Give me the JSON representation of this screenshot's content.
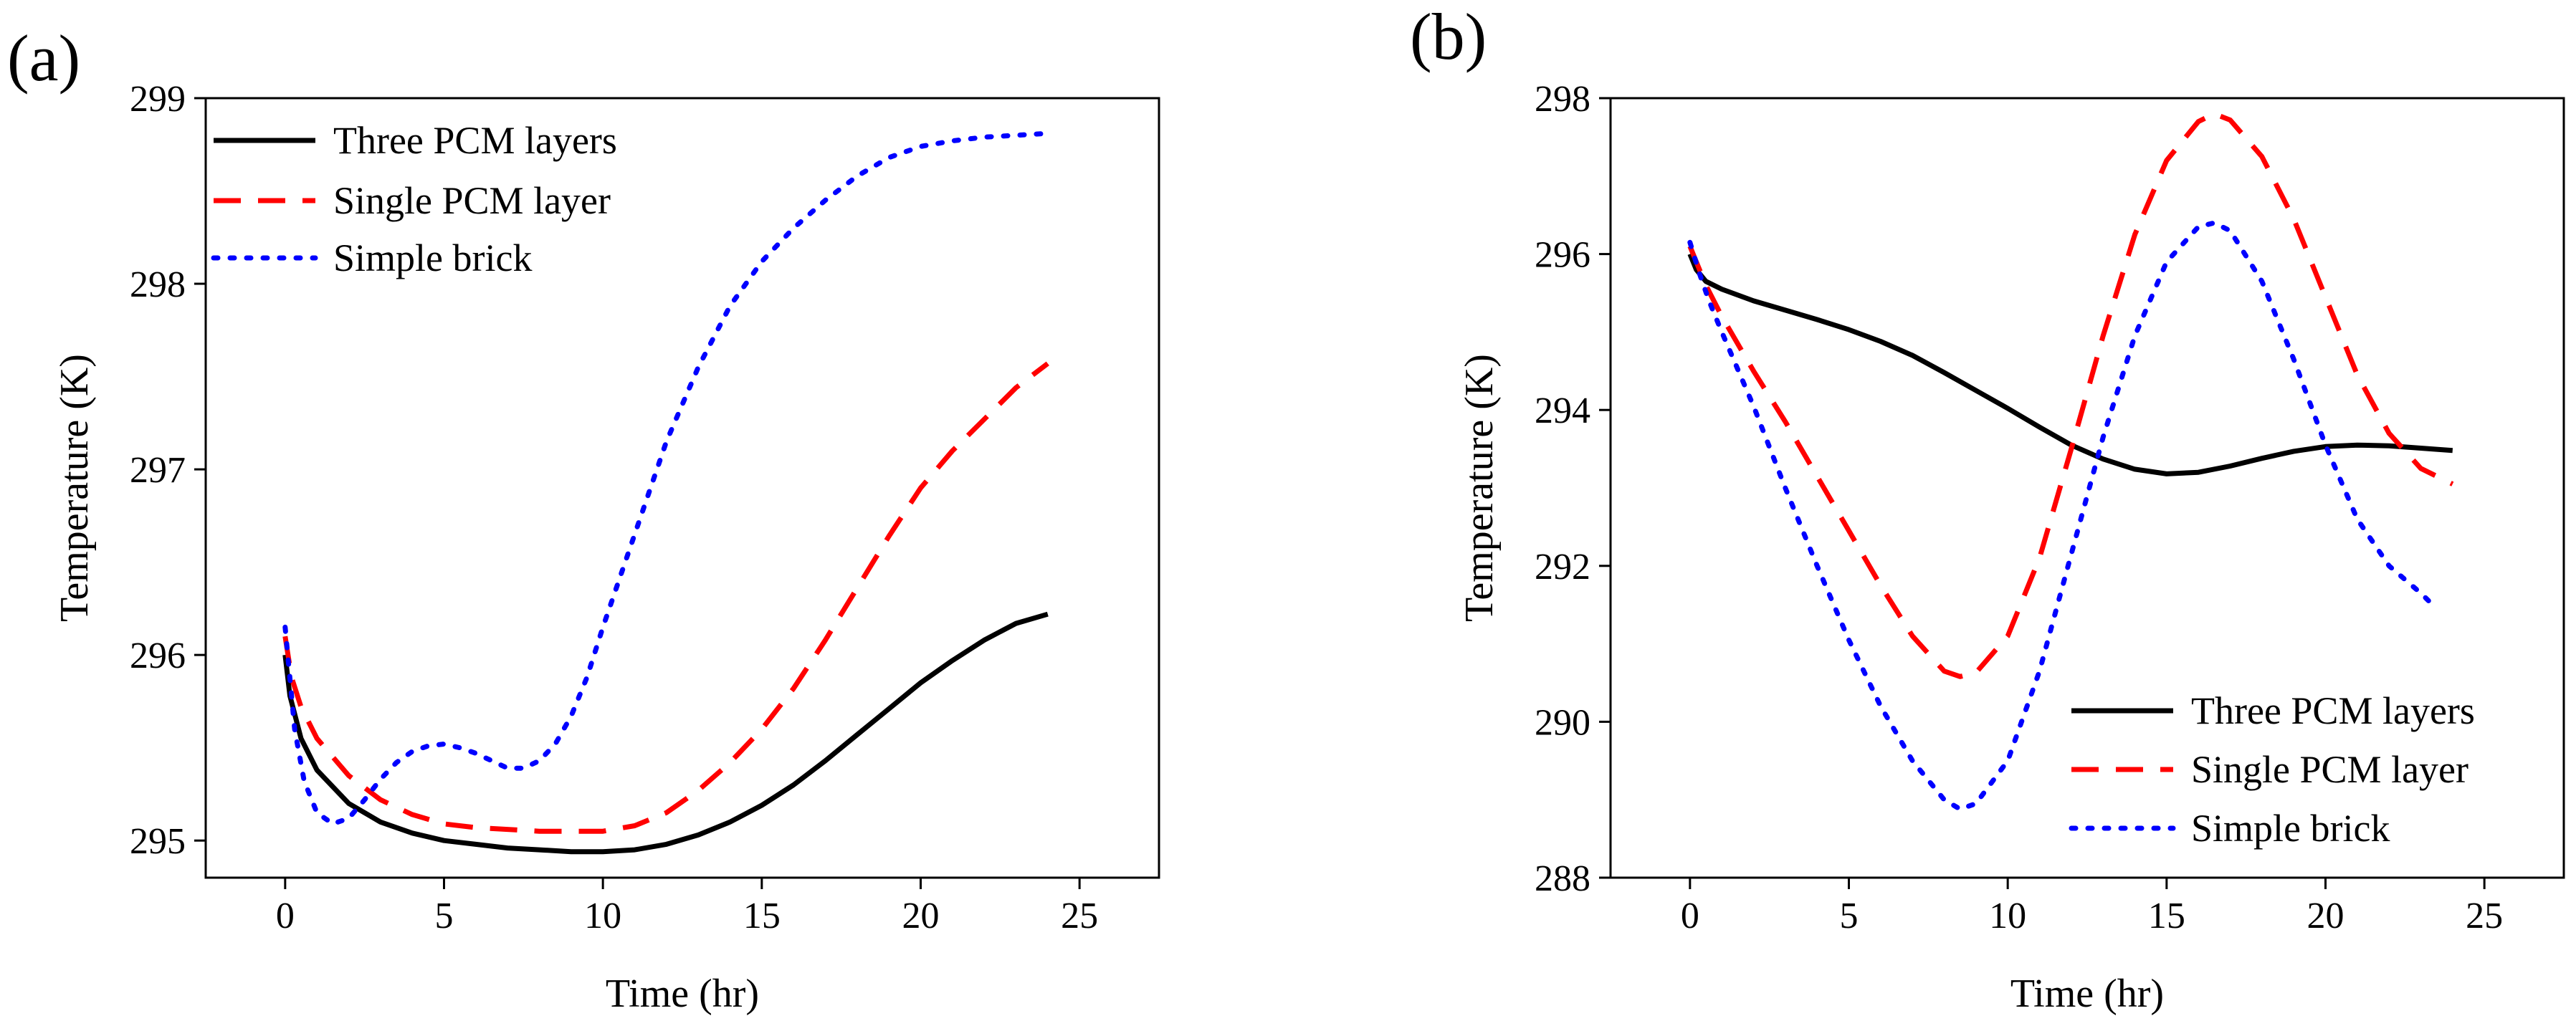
{
  "chart_data": [
    {
      "panel_label": "(a)",
      "type": "line",
      "title": "",
      "xlabel": "Time (hr)",
      "ylabel": "Temperature (K)",
      "xlim": [
        -2.5,
        27.5
      ],
      "ylim": [
        294.8,
        299.0
      ],
      "xticks": [
        0,
        5,
        10,
        15,
        20,
        25
      ],
      "xtick_labels": [
        "0",
        "5",
        "10",
        "15",
        "20",
        "25"
      ],
      "yticks": [
        295,
        296,
        297,
        298,
        299
      ],
      "ytick_labels": [
        "295",
        "296",
        "297",
        "298",
        "299"
      ],
      "grid": false,
      "legend_position": "top-left",
      "series": [
        {
          "name": "Three PCM layers",
          "color": "#000000",
          "style": "solid",
          "x": [
            0,
            0.15,
            0.5,
            1,
            2,
            3,
            4,
            5,
            6,
            7,
            8,
            9,
            10,
            11,
            12,
            13,
            14,
            15,
            16,
            17,
            18,
            19,
            20,
            21,
            22,
            23,
            24
          ],
          "y": [
            296.0,
            295.78,
            295.55,
            295.38,
            295.2,
            295.1,
            295.04,
            295.0,
            294.98,
            294.96,
            294.95,
            294.94,
            294.94,
            294.95,
            294.98,
            295.03,
            295.1,
            295.19,
            295.3,
            295.43,
            295.57,
            295.71,
            295.85,
            295.97,
            296.08,
            296.17,
            296.22
          ]
        },
        {
          "name": "Single PCM layer",
          "color": "#ff0000",
          "style": "dashed",
          "x": [
            0,
            0.2,
            0.5,
            1,
            2,
            3,
            4,
            5,
            6,
            7,
            8,
            9,
            10,
            11,
            12,
            13,
            14,
            15,
            16,
            17,
            18,
            19,
            20,
            21,
            22,
            23,
            24
          ],
          "y": [
            296.1,
            295.88,
            295.72,
            295.55,
            295.35,
            295.22,
            295.14,
            295.09,
            295.07,
            295.06,
            295.05,
            295.05,
            295.05,
            295.08,
            295.15,
            295.27,
            295.42,
            295.6,
            295.82,
            296.08,
            296.36,
            296.64,
            296.9,
            297.1,
            297.27,
            297.44,
            297.57
          ]
        },
        {
          "name": "Simple brick",
          "color": "#0000ff",
          "style": "dotted",
          "x": [
            0,
            0.3,
            0.6,
            1,
            1.5,
            2,
            2.5,
            3,
            3.5,
            4,
            4.5,
            5,
            5.5,
            6,
            6.5,
            7,
            7.5,
            8,
            8.5,
            9,
            9.5,
            10,
            11,
            12,
            13,
            14,
            15,
            16,
            17,
            18,
            19,
            20,
            21,
            22,
            23,
            24
          ],
          "y": [
            296.15,
            295.6,
            295.32,
            295.15,
            295.09,
            295.12,
            295.22,
            295.33,
            295.42,
            295.48,
            295.51,
            295.52,
            295.5,
            295.47,
            295.43,
            295.39,
            295.39,
            295.43,
            295.52,
            295.67,
            295.88,
            296.15,
            296.65,
            297.15,
            297.55,
            297.88,
            298.12,
            298.3,
            298.45,
            298.58,
            298.68,
            298.74,
            298.77,
            298.79,
            298.8,
            298.81
          ]
        }
      ]
    },
    {
      "panel_label": "(b)",
      "type": "line",
      "title": "",
      "xlabel": "Time (hr)",
      "ylabel": "Temperature (K)",
      "xlim": [
        -2.5,
        27.5
      ],
      "ylim": [
        288.0,
        298.0
      ],
      "xticks": [
        0,
        5,
        10,
        15,
        20,
        25
      ],
      "xtick_labels": [
        "0",
        "5",
        "10",
        "15",
        "20",
        "25"
      ],
      "yticks": [
        288,
        290,
        292,
        294,
        296,
        298
      ],
      "ytick_labels": [
        "288",
        "290",
        "292",
        "294",
        "296",
        "298"
      ],
      "grid": false,
      "legend_position": "bottom-right",
      "series": [
        {
          "name": "Three PCM layers",
          "color": "#000000",
          "style": "solid",
          "x": [
            0,
            0.2,
            0.5,
            1,
            2,
            3,
            4,
            5,
            6,
            7,
            8,
            9,
            10,
            11,
            12,
            13,
            14,
            15,
            16,
            17,
            18,
            19,
            20,
            21,
            22,
            23,
            24
          ],
          "y": [
            296.0,
            295.8,
            295.65,
            295.55,
            295.4,
            295.28,
            295.16,
            295.03,
            294.88,
            294.7,
            294.48,
            294.25,
            294.02,
            293.78,
            293.55,
            293.37,
            293.24,
            293.18,
            293.2,
            293.28,
            293.38,
            293.47,
            293.53,
            293.55,
            293.54,
            293.51,
            293.48
          ]
        },
        {
          "name": "Single PCM layer",
          "color": "#ff0000",
          "style": "dashed",
          "x": [
            0,
            0.25,
            0.5,
            1,
            2,
            3,
            4,
            5,
            6,
            7,
            8,
            8.5,
            9,
            10,
            11,
            12,
            13,
            14,
            15,
            16,
            16.5,
            17,
            18,
            19,
            20,
            21,
            22,
            23,
            24
          ],
          "y": [
            296.1,
            295.85,
            295.6,
            295.2,
            294.5,
            293.85,
            293.15,
            292.45,
            291.75,
            291.1,
            290.65,
            290.58,
            290.63,
            291.1,
            292.1,
            293.5,
            294.95,
            296.25,
            297.2,
            297.7,
            297.8,
            297.72,
            297.25,
            296.45,
            295.45,
            294.45,
            293.7,
            293.25,
            293.05
          ]
        },
        {
          "name": "Simple brick",
          "color": "#0000ff",
          "style": "dotted",
          "x": [
            0,
            0.3,
            0.6,
            1,
            2,
            3,
            4,
            5,
            6,
            7,
            8,
            8.5,
            9,
            10,
            11,
            12,
            13,
            14,
            15,
            16,
            16.5,
            17,
            18,
            19,
            20,
            21,
            22,
            23,
            23.5
          ],
          "y": [
            296.15,
            295.75,
            295.4,
            295.0,
            294.05,
            293.0,
            292.0,
            291.05,
            290.2,
            289.5,
            289.0,
            288.88,
            288.95,
            289.5,
            290.65,
            292.15,
            293.65,
            294.95,
            295.9,
            296.35,
            296.4,
            296.3,
            295.65,
            294.65,
            293.55,
            292.6,
            292.0,
            291.65,
            291.45
          ]
        }
      ]
    }
  ]
}
